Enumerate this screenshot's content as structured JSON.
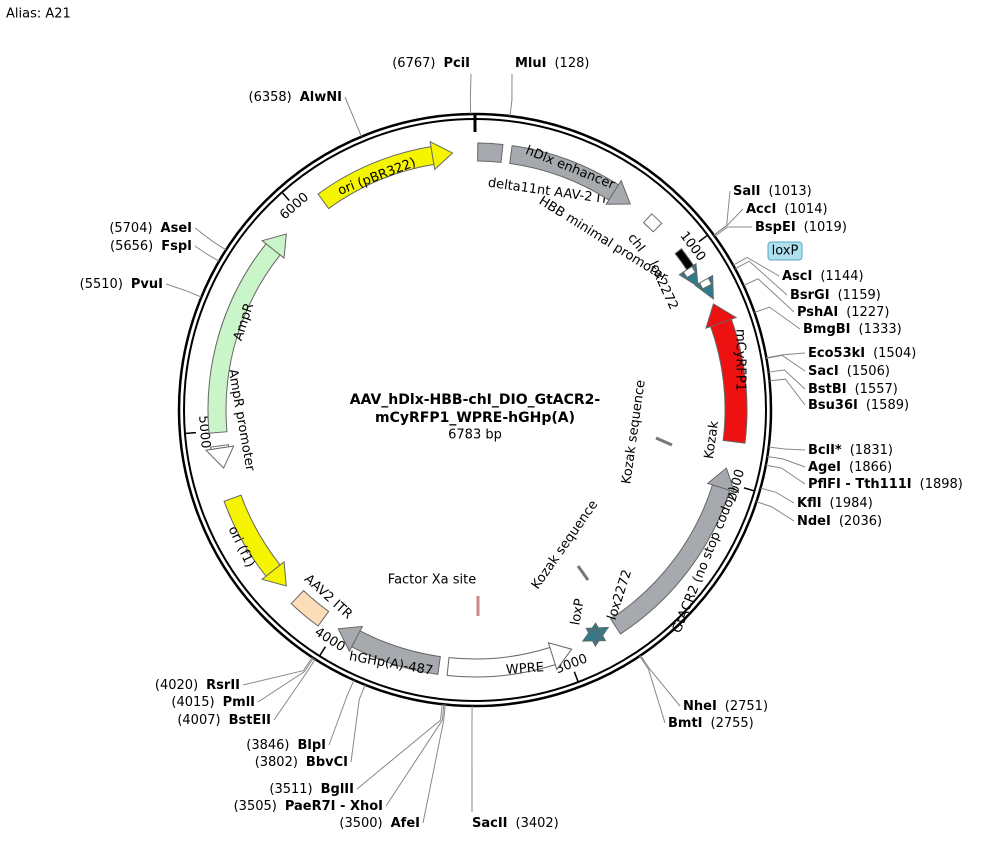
{
  "alias": "Alias:  A21",
  "map": {
    "title_lines": [
      "AAV_hDlx-HBB-chI_DIO_GtACR2-",
      "mCyRFP1_WPRE-hGHp(A)"
    ],
    "length": {
      "value": 6783,
      "label": "6783 bp"
    },
    "ticks": [
      1000,
      2000,
      3000,
      4000,
      5000,
      6000
    ],
    "sites": [
      {
        "name": "PciI",
        "pos": {
          "value": 6767,
          "label": "(6767)"
        }
      },
      {
        "name": "MluI",
        "pos": {
          "value": 128,
          "label": "(128)"
        }
      },
      {
        "name": "AlwNI",
        "pos": {
          "value": 6358,
          "label": "(6358)"
        }
      },
      {
        "name": "AseI",
        "pos": {
          "value": 5704,
          "label": "(5704)"
        }
      },
      {
        "name": "FspI",
        "pos": {
          "value": 5656,
          "label": "(5656)"
        }
      },
      {
        "name": "PvuI",
        "pos": {
          "value": 5510,
          "label": "(5510)"
        }
      },
      {
        "name": "SalI",
        "pos": {
          "value": 1013,
          "label": "(1013)"
        }
      },
      {
        "name": "AccI",
        "pos": {
          "value": 1014,
          "label": "(1014)"
        }
      },
      {
        "name": "BspEI",
        "pos": {
          "value": 1019,
          "label": "(1019)"
        }
      },
      {
        "name": "AscI",
        "pos": {
          "value": 1144,
          "label": "(1144)"
        }
      },
      {
        "name": "BsrGI",
        "pos": {
          "value": 1159,
          "label": "(1159)"
        }
      },
      {
        "name": "PshAI",
        "pos": {
          "value": 1227,
          "label": "(1227)"
        }
      },
      {
        "name": "BmgBI",
        "pos": {
          "value": 1333,
          "label": "(1333)"
        }
      },
      {
        "name": "Eco53kI",
        "pos": {
          "value": 1504,
          "label": "(1504)"
        }
      },
      {
        "name": "SacI",
        "pos": {
          "value": 1506,
          "label": "(1506)"
        }
      },
      {
        "name": "BstBI",
        "pos": {
          "value": 1557,
          "label": "(1557)"
        }
      },
      {
        "name": "Bsu36I",
        "pos": {
          "value": 1589,
          "label": "(1589)"
        }
      },
      {
        "name": "BclI*",
        "pos": {
          "value": 1831,
          "label": "(1831)"
        }
      },
      {
        "name": "AgeI",
        "pos": {
          "value": 1866,
          "label": "(1866)"
        }
      },
      {
        "name": "PflFI - Tth111I",
        "pos": {
          "value": 1898,
          "label": "(1898)"
        }
      },
      {
        "name": "KflI",
        "pos": {
          "value": 1984,
          "label": "(1984)"
        }
      },
      {
        "name": "NdeI",
        "pos": {
          "value": 2036,
          "label": "(2036)"
        }
      },
      {
        "name": "NheI",
        "pos": {
          "value": 2751,
          "label": "(2751)"
        }
      },
      {
        "name": "BmtI",
        "pos": {
          "value": 2755,
          "label": "(2755)"
        }
      },
      {
        "name": "SacII",
        "pos": {
          "value": 3402,
          "label": "(3402)"
        }
      },
      {
        "name": "AfeI",
        "pos": {
          "value": 3500,
          "label": "(3500)"
        }
      },
      {
        "name": "PaeR7I - XhoI",
        "pos": {
          "value": 3505,
          "label": "(3505)"
        }
      },
      {
        "name": "BglII",
        "pos": {
          "value": 3511,
          "label": "(3511)"
        }
      },
      {
        "name": "BbvCI",
        "pos": {
          "value": 3802,
          "label": "(3802)"
        }
      },
      {
        "name": "BlpI",
        "pos": {
          "value": 3846,
          "label": "(3846)"
        }
      },
      {
        "name": "BstEII",
        "pos": {
          "value": 4007,
          "label": "(4007)"
        }
      },
      {
        "name": "PmlI",
        "pos": {
          "value": 4015,
          "label": "(4015)"
        }
      },
      {
        "name": "RsrII",
        "pos": {
          "value": 4020,
          "label": "(4020)"
        }
      }
    ],
    "features": [
      "delta11nt AAV-2 ITR",
      "hDlx enhancer",
      "HBB minimal promoter",
      "chI",
      "lox2272",
      "loxP",
      "mCyRFP1",
      "Kozak",
      "GtACR2 (no stop codon)",
      "Kozak sequence",
      "Kozak sequence",
      "lox2272",
      "loxP",
      "WPRE",
      "Factor Xa site",
      "hGHp(A)-487",
      "AAV2 ITR",
      "ori (f1)",
      "AmpR promoter",
      "AmpR",
      "ori (pBR322)"
    ]
  }
}
